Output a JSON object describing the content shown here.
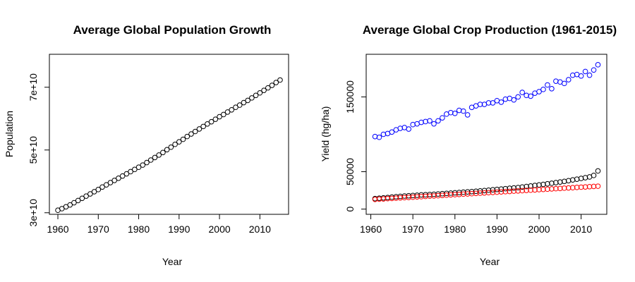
{
  "chart_data": [
    {
      "type": "scatter",
      "title": "Average Global Population Growth",
      "xlabel": "Year",
      "ylabel": "Population",
      "xlim": [
        1957.9,
        2017.1
      ],
      "ylim": [
        29500000000,
        80500000000
      ],
      "xticks": [
        1960,
        1970,
        1980,
        1990,
        2000,
        2010
      ],
      "xtick_labels": [
        "1960",
        "1970",
        "1980",
        "1990",
        "2000",
        "2010"
      ],
      "yticks": [
        30000000000,
        50000000000,
        70000000000
      ],
      "ytick_labels": [
        "3e+10",
        "5e+10",
        "7e+10"
      ],
      "grid": false,
      "series": [
        {
          "color": "#000000",
          "x": [
            1960,
            1961,
            1962,
            1963,
            1964,
            1965,
            1966,
            1967,
            1968,
            1969,
            1970,
            1971,
            1972,
            1973,
            1974,
            1975,
            1976,
            1977,
            1978,
            1979,
            1980,
            1981,
            1982,
            1983,
            1984,
            1985,
            1986,
            1987,
            1988,
            1989,
            1990,
            1991,
            1992,
            1993,
            1994,
            1995,
            1996,
            1997,
            1998,
            1999,
            2000,
            2001,
            2002,
            2003,
            2004,
            2005,
            2006,
            2007,
            2008,
            2009,
            2010,
            2011,
            2012,
            2013,
            2014,
            2015
          ],
          "y": [
            30800000000,
            31300000000,
            31900000000,
            32500000000,
            33200000000,
            33900000000,
            34600000000,
            35300000000,
            36000000000,
            36700000000,
            37400000000,
            38200000000,
            38900000000,
            39600000000,
            40300000000,
            41000000000,
            41700000000,
            42400000000,
            43100000000,
            43800000000,
            44500000000,
            45200000000,
            46000000000,
            46800000000,
            47600000000,
            48400000000,
            49200000000,
            50100000000,
            50900000000,
            51800000000,
            52600000000,
            53400000000,
            54300000000,
            55100000000,
            55900000000,
            56700000000,
            57500000000,
            58300000000,
            59000000000,
            59800000000,
            60600000000,
            61300000000,
            62100000000,
            62800000000,
            63600000000,
            64300000000,
            65100000000,
            65800000000,
            66600000000,
            67400000000,
            68200000000,
            69000000000,
            69800000000,
            70600000000,
            71500000000,
            72300000000
          ]
        }
      ]
    },
    {
      "type": "scatter",
      "title": "Average Global Crop Production (1961-2015)",
      "xlabel": "Year",
      "ylabel": "Yield (hg/ha)",
      "xlim": [
        1958.9,
        2016.1
      ],
      "ylim": [
        -7000,
        207000
      ],
      "xticks": [
        1960,
        1970,
        1980,
        1990,
        2000,
        2010
      ],
      "xtick_labels": [
        "1960",
        "1970",
        "1980",
        "1990",
        "2000",
        "2010"
      ],
      "yticks": [
        0,
        50000,
        150000
      ],
      "ytick_labels": [
        "0",
        "50000",
        "150000"
      ],
      "grid": false,
      "series": [
        {
          "color": "#0000ff",
          "x": [
            1961,
            1962,
            1963,
            1964,
            1965,
            1966,
            1967,
            1968,
            1969,
            1970,
            1971,
            1972,
            1973,
            1974,
            1975,
            1976,
            1977,
            1978,
            1979,
            1980,
            1981,
            1982,
            1983,
            1984,
            1985,
            1986,
            1987,
            1988,
            1989,
            1990,
            1991,
            1992,
            1993,
            1994,
            1995,
            1996,
            1997,
            1998,
            1999,
            2000,
            2001,
            2002,
            2003,
            2004,
            2005,
            2006,
            2007,
            2008,
            2009,
            2010,
            2011,
            2012,
            2013,
            2014
          ],
          "y": [
            97000,
            96000,
            100000,
            101000,
            103000,
            106000,
            108000,
            109000,
            107000,
            113000,
            114000,
            116000,
            117000,
            118000,
            114000,
            118000,
            122000,
            127000,
            129000,
            128000,
            132000,
            131000,
            126000,
            136000,
            138000,
            140000,
            140000,
            142000,
            142000,
            145000,
            143000,
            147000,
            148000,
            146000,
            150000,
            156000,
            152000,
            151000,
            155000,
            157000,
            160000,
            166000,
            161000,
            171000,
            170000,
            168000,
            173000,
            179000,
            180000,
            178000,
            184000,
            179000,
            186000,
            193000
          ]
        },
        {
          "color": "#000000",
          "x": [
            1961,
            1962,
            1963,
            1964,
            1965,
            1966,
            1967,
            1968,
            1969,
            1970,
            1971,
            1972,
            1973,
            1974,
            1975,
            1976,
            1977,
            1978,
            1979,
            1980,
            1981,
            1982,
            1983,
            1984,
            1985,
            1986,
            1987,
            1988,
            1989,
            1990,
            1991,
            1992,
            1993,
            1994,
            1995,
            1996,
            1997,
            1998,
            1999,
            2000,
            2001,
            2002,
            2003,
            2004,
            2005,
            2006,
            2007,
            2008,
            2009,
            2010,
            2011,
            2012,
            2013,
            2014
          ],
          "y": [
            14000,
            14500,
            15000,
            15500,
            16000,
            16500,
            17000,
            17500,
            17800,
            18200,
            18500,
            19000,
            19200,
            19500,
            19800,
            20200,
            20600,
            21000,
            21400,
            21800,
            22200,
            22600,
            23000,
            23400,
            23800,
            24300,
            24800,
            25300,
            25800,
            26300,
            26800,
            27300,
            27800,
            28300,
            28800,
            29500,
            30200,
            30900,
            31600,
            32300,
            33000,
            33800,
            34600,
            35400,
            36200,
            37000,
            38000,
            39000,
            40000,
            41000,
            42000,
            43000,
            45000,
            51000
          ]
        },
        {
          "color": "#ff0000",
          "x": [
            1961,
            1962,
            1963,
            1964,
            1965,
            1966,
            1967,
            1968,
            1969,
            1970,
            1971,
            1972,
            1973,
            1974,
            1975,
            1976,
            1977,
            1978,
            1979,
            1980,
            1981,
            1982,
            1983,
            1984,
            1985,
            1986,
            1987,
            1988,
            1989,
            1990,
            1991,
            1992,
            1993,
            1994,
            1995,
            1996,
            1997,
            1998,
            1999,
            2000,
            2001,
            2002,
            2003,
            2004,
            2005,
            2006,
            2007,
            2008,
            2009,
            2010,
            2011,
            2012,
            2013,
            2014
          ],
          "y": [
            13000,
            13300,
            13600,
            14000,
            14300,
            14600,
            15000,
            15300,
            15600,
            15900,
            16300,
            16600,
            17000,
            17300,
            17600,
            17900,
            18300,
            18600,
            19000,
            19300,
            19600,
            20000,
            20300,
            20600,
            21000,
            21300,
            21600,
            22000,
            22300,
            22600,
            23000,
            23300,
            23600,
            24000,
            24300,
            24600,
            25000,
            25300,
            25600,
            26000,
            26300,
            26600,
            27000,
            27300,
            27600,
            28000,
            28300,
            28600,
            29000,
            29300,
            29600,
            30000,
            30300,
            30600
          ]
        }
      ]
    }
  ]
}
